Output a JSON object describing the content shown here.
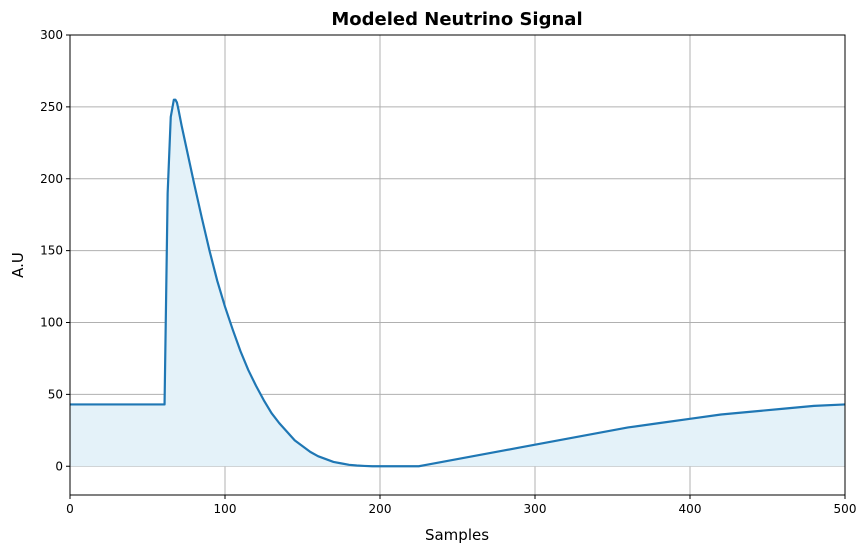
{
  "chart_data": {
    "type": "area",
    "title": "Modeled Neutrino Signal",
    "xlabel": "Samples",
    "ylabel": "A.U",
    "xlim": [
      0,
      500
    ],
    "ylim": [
      -20,
      300
    ],
    "xticks": [
      "0",
      "100",
      "200",
      "300",
      "400",
      "500"
    ],
    "yticks": [
      "0",
      "50",
      "100",
      "150",
      "200",
      "250",
      "300"
    ],
    "grid": true,
    "line_color": "#1f77b4",
    "fill_color": "#e4f2f9",
    "series": [
      {
        "x": [
          0,
          61,
          61,
          63,
          65,
          67,
          68,
          69,
          70,
          72,
          75,
          80,
          85,
          90,
          95,
          100,
          105,
          110,
          115,
          120,
          125,
          130,
          135,
          140,
          145,
          150,
          155,
          160,
          165,
          170,
          175,
          180,
          185,
          190,
          195,
          200,
          210,
          220,
          225,
          230,
          240,
          250,
          260,
          270,
          280,
          290,
          300,
          320,
          340,
          360,
          380,
          400,
          420,
          440,
          460,
          480,
          500
        ],
        "y": [
          43,
          43,
          43,
          190,
          243,
          255,
          255,
          253,
          248,
          237,
          222,
          197,
          173,
          150,
          129,
          111,
          95,
          80,
          67,
          56,
          46,
          37,
          30,
          24,
          18,
          14,
          10,
          7,
          5,
          3,
          2,
          1,
          0.5,
          0.2,
          0,
          0,
          0,
          0,
          0,
          1,
          3,
          5,
          7,
          9,
          11,
          13,
          15,
          19,
          23,
          27,
          30,
          33,
          36,
          38,
          40,
          42,
          43
        ]
      }
    ]
  }
}
